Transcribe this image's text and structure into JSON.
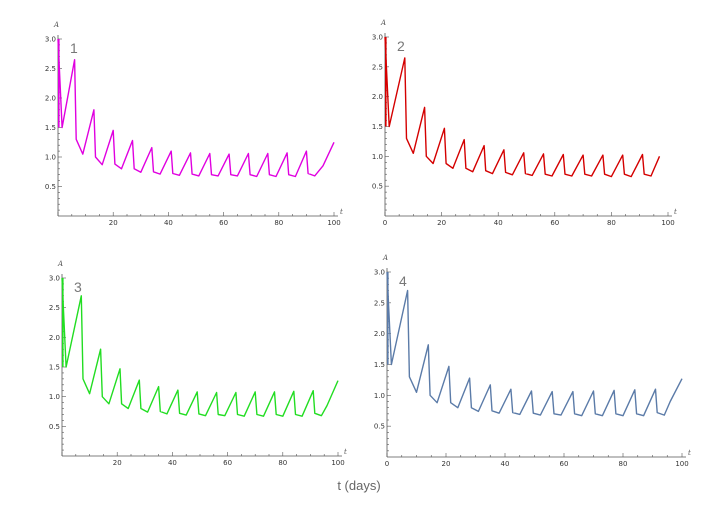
{
  "figure": {
    "xlabel": "t (days)"
  },
  "chart_data": [
    {
      "type": "line",
      "panel_label": "1",
      "color": "#e000e0",
      "xlabel": "t",
      "ylabel": "A",
      "xlim": [
        0,
        100
      ],
      "ylim": [
        0,
        3.0
      ],
      "x_ticks": [
        "20",
        "40",
        "60",
        "80",
        "100"
      ],
      "y_ticks": [
        "0.5",
        "1.0",
        "1.5",
        "2.0",
        "2.5",
        "3.0"
      ],
      "series": [
        {
          "x": [
            0,
            1.5,
            6,
            6.6,
            9,
            13,
            13.6,
            16,
            20,
            20.6,
            23,
            27,
            27.6,
            30,
            34,
            34.6,
            37,
            41,
            41.6,
            44,
            48,
            48.6,
            51,
            55,
            55.6,
            58,
            62,
            62.6,
            65,
            69,
            69.6,
            72,
            76,
            76.6,
            79,
            83,
            83.6,
            86,
            90,
            90.6,
            93,
            96,
            100
          ],
          "y": [
            3.0,
            1.5,
            2.65,
            1.3,
            1.05,
            1.8,
            1.0,
            0.87,
            1.45,
            0.88,
            0.8,
            1.28,
            0.8,
            0.74,
            1.16,
            0.75,
            0.71,
            1.1,
            0.72,
            0.69,
            1.07,
            0.71,
            0.68,
            1.06,
            0.7,
            0.68,
            1.05,
            0.7,
            0.68,
            1.06,
            0.7,
            0.67,
            1.06,
            0.7,
            0.67,
            1.07,
            0.7,
            0.67,
            1.1,
            0.72,
            0.68,
            0.85,
            1.25
          ]
        }
      ]
    },
    {
      "type": "line",
      "panel_label": "2",
      "color": "#d40000",
      "xlabel": "t",
      "ylabel": "A",
      "xlim": [
        0,
        100
      ],
      "ylim": [
        0,
        3.0
      ],
      "x_ticks": [
        "0",
        "20",
        "40",
        "60",
        "80",
        "100"
      ],
      "y_ticks": [
        "0.5",
        "1.0",
        "1.5",
        "2.0",
        "2.5",
        "3.0"
      ],
      "series": [
        {
          "x": [
            0,
            1.5,
            7,
            7.6,
            10,
            14,
            14.6,
            17,
            21,
            21.6,
            24,
            28,
            28.6,
            31,
            35,
            35.6,
            38,
            42,
            42.6,
            45,
            49,
            49.6,
            52,
            56,
            56.6,
            59,
            63,
            63.6,
            66,
            70,
            70.6,
            73,
            77,
            77.6,
            80,
            84,
            84.6,
            87,
            91,
            91.6,
            94,
            97
          ],
          "y": [
            3.0,
            1.5,
            2.65,
            1.3,
            1.05,
            1.82,
            1.0,
            0.88,
            1.47,
            0.88,
            0.8,
            1.28,
            0.8,
            0.74,
            1.18,
            0.76,
            0.71,
            1.11,
            0.73,
            0.69,
            1.06,
            0.71,
            0.68,
            1.04,
            0.7,
            0.67,
            1.03,
            0.7,
            0.67,
            1.02,
            0.7,
            0.67,
            1.02,
            0.7,
            0.66,
            1.02,
            0.7,
            0.66,
            1.03,
            0.7,
            0.67,
            1.0
          ]
        }
      ]
    },
    {
      "type": "line",
      "panel_label": "3",
      "color": "#22dd22",
      "xlabel": "t",
      "ylabel": "A",
      "xlim": [
        0,
        100
      ],
      "ylim": [
        0,
        3.0
      ],
      "x_ticks": [
        "20",
        "40",
        "60",
        "80",
        "100"
      ],
      "y_ticks": [
        "0.5",
        "1.0",
        "1.5",
        "2.0",
        "2.5",
        "3.0"
      ],
      "series": [
        {
          "x": [
            0,
            1.5,
            7,
            7.6,
            10,
            14,
            14.6,
            17,
            21,
            21.6,
            24,
            28,
            28.6,
            31,
            35,
            35.6,
            38,
            42,
            42.6,
            45,
            49,
            49.6,
            52,
            56,
            56.6,
            59,
            63,
            63.6,
            66,
            70,
            70.6,
            73,
            77,
            77.6,
            80,
            84,
            84.6,
            87,
            91,
            91.6,
            94,
            96,
            100
          ],
          "y": [
            3.0,
            1.5,
            2.7,
            1.3,
            1.05,
            1.8,
            1.0,
            0.88,
            1.47,
            0.88,
            0.8,
            1.28,
            0.8,
            0.74,
            1.17,
            0.75,
            0.71,
            1.11,
            0.72,
            0.69,
            1.08,
            0.71,
            0.68,
            1.07,
            0.7,
            0.68,
            1.07,
            0.7,
            0.67,
            1.08,
            0.7,
            0.67,
            1.08,
            0.7,
            0.67,
            1.09,
            0.7,
            0.67,
            1.1,
            0.72,
            0.68,
            0.85,
            1.27
          ]
        }
      ]
    },
    {
      "type": "line",
      "panel_label": "4",
      "color": "#5b7ba8",
      "xlabel": "t",
      "ylabel": "A",
      "xlim": [
        0,
        100
      ],
      "ylim": [
        0,
        3.0
      ],
      "x_ticks": [
        "0",
        "20",
        "40",
        "60",
        "80",
        "100"
      ],
      "y_ticks": [
        "0.5",
        "1.0",
        "1.5",
        "2.0",
        "2.5",
        "3.0"
      ],
      "series": [
        {
          "x": [
            0,
            1.5,
            7,
            7.6,
            10,
            14,
            14.6,
            17,
            21,
            21.6,
            24,
            28,
            28.6,
            31,
            35,
            35.6,
            38,
            42,
            42.6,
            45,
            49,
            49.6,
            52,
            56,
            56.6,
            59,
            63,
            63.6,
            66,
            70,
            70.6,
            73,
            77,
            77.6,
            80,
            84,
            84.6,
            87,
            91,
            91.6,
            94,
            96,
            100
          ],
          "y": [
            3.0,
            1.5,
            2.7,
            1.3,
            1.05,
            1.82,
            1.0,
            0.88,
            1.47,
            0.88,
            0.8,
            1.28,
            0.8,
            0.74,
            1.17,
            0.75,
            0.71,
            1.1,
            0.72,
            0.69,
            1.07,
            0.71,
            0.68,
            1.06,
            0.7,
            0.68,
            1.06,
            0.7,
            0.67,
            1.07,
            0.7,
            0.67,
            1.08,
            0.7,
            0.67,
            1.09,
            0.7,
            0.67,
            1.1,
            0.72,
            0.68,
            0.9,
            1.27
          ]
        }
      ]
    }
  ]
}
